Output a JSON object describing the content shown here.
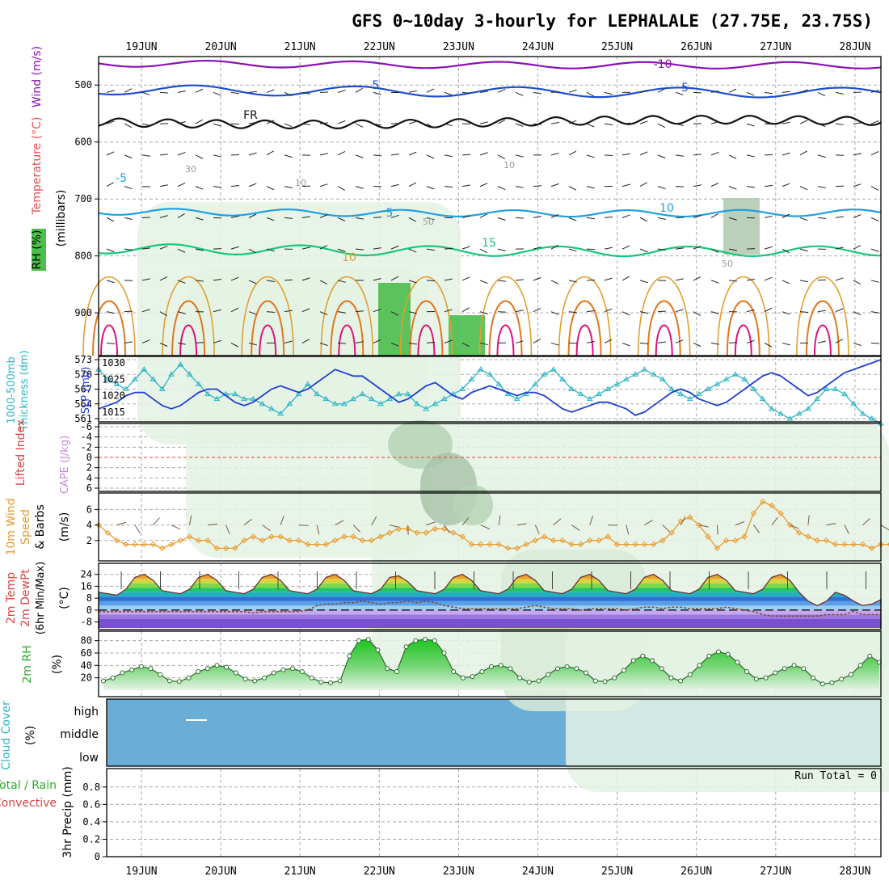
{
  "title": "GFS 0~10day 3-hourly for LEPHALALE (27.75E, 23.75S)",
  "dates": [
    "19JUN",
    "20JUN",
    "21JUN",
    "22JUN",
    "23JUN",
    "24JUN",
    "25JUN",
    "26JUN",
    "27JUN",
    "28JUN"
  ],
  "colors": {
    "purple": "#8b12b5",
    "blue": "#1c4fd0",
    "skyblue": "#1e9fe6",
    "green": "#16c77b",
    "orange": "#e0a030",
    "darkorange": "#e07820",
    "magenta": "#e0107a",
    "rh": "#4ab84a",
    "cyan": "#2bb5c5",
    "slp": "#1f3fd0",
    "wind": "#e89a2a",
    "cloud": "#6aaed6",
    "red": "#e04040"
  },
  "chart_data": [
    {
      "type": "contour",
      "panel": "upper-air",
      "ylabel_parts": [
        "RH (%)",
        "Temperature (°C)",
        "Wind (m/s)"
      ],
      "yunits": "(millibars)",
      "yticks": [
        500,
        600,
        700,
        800,
        900
      ],
      "ylim": [
        1000,
        450
      ],
      "contour_labels": [
        "-10",
        "-5",
        "5",
        "FR",
        "-5",
        "5",
        "10",
        "15",
        "10",
        "30",
        "50",
        "50",
        "10",
        "10"
      ]
    },
    {
      "type": "line",
      "panel": "thickness-slp",
      "ylabel_left": "1000-500mb Thickness (dm)",
      "ylabel_right": "SLP (mb)",
      "yticks_left": [
        "573",
        "570",
        "567",
        "564",
        "561"
      ],
      "yticks_right": [
        "1030",
        "1025",
        "1020",
        "1015"
      ],
      "series": [
        {
          "name": "Thickness",
          "values": [
            571,
            569,
            568,
            567,
            569,
            571,
            569,
            567,
            570,
            572,
            570,
            568,
            566,
            565,
            566,
            566,
            565,
            565,
            564,
            563,
            562,
            564,
            566,
            568,
            566,
            565,
            564,
            564,
            565,
            566,
            565,
            564,
            565,
            566,
            566,
            564,
            563,
            564,
            565,
            566,
            567,
            569,
            571,
            570,
            568,
            566,
            565,
            566,
            568,
            570,
            571,
            569,
            567,
            566,
            565,
            566,
            567,
            568,
            569,
            570,
            571,
            570,
            569,
            567,
            566,
            565,
            566,
            567,
            568,
            569,
            570,
            569,
            567,
            565,
            563,
            562,
            561,
            562,
            563,
            565,
            567,
            567,
            566,
            564,
            562,
            561,
            560
          ]
        },
        {
          "name": "SLP",
          "values": [
            1016,
            1017,
            1018,
            1020,
            1021,
            1021,
            1019,
            1017,
            1016,
            1017,
            1019,
            1021,
            1022,
            1022,
            1020,
            1018,
            1017,
            1018,
            1020,
            1022,
            1023,
            1022,
            1021,
            1022,
            1024,
            1026,
            1028,
            1027,
            1026,
            1026,
            1024,
            1022,
            1020,
            1018,
            1019,
            1021,
            1023,
            1024,
            1022,
            1020,
            1019,
            1021,
            1022,
            1023,
            1022,
            1021,
            1020,
            1021,
            1021,
            1020,
            1018,
            1016,
            1015,
            1016,
            1017,
            1018,
            1018,
            1017,
            1016,
            1014,
            1015,
            1017,
            1019,
            1021,
            1022,
            1021,
            1019,
            1018,
            1017,
            1018,
            1020,
            1022,
            1024,
            1026,
            1027,
            1026,
            1024,
            1022,
            1020,
            1021,
            1023,
            1025,
            1027,
            1028,
            1029,
            1030,
            1031
          ]
        }
      ]
    },
    {
      "type": "line",
      "panel": "cape-li",
      "ylabel_parts": [
        "Lifted Index",
        "CAPE (J/kg)"
      ],
      "yticks": [
        "-6",
        "-4",
        "-2",
        "0",
        "2",
        "4",
        "6"
      ]
    },
    {
      "type": "line",
      "panel": "wind10m",
      "ylabel_parts": [
        "10m Wind",
        "Speed",
        "& Barbs",
        "(m/s)"
      ],
      "yticks": [
        2,
        4,
        6
      ],
      "series": [
        {
          "name": "Speed",
          "values": [
            4,
            3,
            2,
            1.5,
            1.5,
            1.5,
            1.5,
            1,
            1.5,
            2,
            2.5,
            2,
            2,
            1,
            1,
            1,
            2,
            2.5,
            2,
            2.5,
            2.5,
            2,
            2,
            1.5,
            1.5,
            1.5,
            2,
            2.5,
            2.5,
            2,
            2,
            2.5,
            3,
            3.5,
            3.5,
            3,
            3,
            3.5,
            3.5,
            3,
            2.5,
            1.5,
            1.5,
            1.5,
            1.5,
            1,
            1,
            1.5,
            2,
            2.5,
            2,
            2,
            1.5,
            1.5,
            2,
            2,
            2.5,
            1.5,
            1.5,
            1.5,
            1.5,
            1.5,
            2,
            3,
            4.5,
            5,
            4,
            2.5,
            1,
            2,
            2,
            2.5,
            5.5,
            7,
            6.5,
            5.5,
            4,
            3,
            2.5,
            2,
            2,
            1.5,
            1.5,
            1.5,
            1.5,
            1,
            1.5,
            1.5,
            1
          ]
        }
      ]
    },
    {
      "type": "area",
      "panel": "temp2m",
      "ylabel_parts": [
        "2m Temp",
        "2m DewPt",
        "(6hr Min/Max)",
        "(°C)"
      ],
      "yticks": [
        "24",
        "16",
        "8",
        "0",
        "-8"
      ],
      "series": [
        {
          "name": "Temp",
          "values": [
            12,
            11,
            10,
            14,
            22,
            24,
            20,
            13,
            12,
            11,
            14,
            22,
            24,
            20,
            13,
            12,
            11,
            14,
            22,
            24,
            20,
            13,
            12,
            11,
            14,
            22,
            24,
            20,
            13,
            12,
            11,
            14,
            22,
            23,
            19,
            13,
            12,
            11,
            14,
            22,
            24,
            20,
            13,
            12,
            11,
            14,
            22,
            24,
            20,
            13,
            12,
            11,
            14,
            22,
            24,
            20,
            13,
            12,
            11,
            14,
            22,
            24,
            20,
            13,
            12,
            11,
            14,
            22,
            24,
            20,
            13,
            12,
            11,
            14,
            22,
            24,
            20,
            12,
            6,
            3,
            6,
            12,
            10,
            6,
            3,
            4,
            7
          ]
        },
        {
          "name": "DewPt",
          "values": [
            -1,
            -1,
            -1,
            -1,
            -1,
            -1,
            -1,
            -1,
            -1,
            -1,
            -1,
            -1,
            -1,
            -1,
            -1,
            -1,
            -1,
            -2,
            -1,
            -1,
            -1,
            -1,
            -1,
            0,
            3,
            4,
            4,
            5,
            5,
            6,
            5,
            4,
            5,
            5,
            6,
            5,
            6,
            5,
            3,
            2,
            1,
            1,
            1,
            1,
            1,
            1,
            1,
            2,
            3,
            2,
            1,
            1,
            1,
            0,
            1,
            1,
            1,
            1,
            0,
            1,
            2,
            2,
            1,
            2,
            2,
            1,
            1,
            1,
            1,
            2,
            1,
            0,
            -1,
            -3,
            -4,
            -4,
            -4,
            -4,
            -4,
            -4,
            -3,
            -3,
            -3,
            -1,
            -3,
            -3,
            -3
          ]
        }
      ]
    },
    {
      "type": "area",
      "panel": "rh2m",
      "ylabel_parts": [
        "2m RH",
        "(%)"
      ],
      "yticks": [
        20,
        40,
        60,
        80
      ],
      "series": [
        {
          "name": "RH",
          "values": [
            15,
            20,
            28,
            33,
            38,
            35,
            25,
            15,
            14,
            20,
            30,
            35,
            40,
            37,
            28,
            18,
            15,
            20,
            28,
            33,
            35,
            30,
            20,
            13,
            12,
            15,
            55,
            80,
            82,
            65,
            35,
            30,
            70,
            80,
            82,
            80,
            60,
            30,
            20,
            22,
            30,
            38,
            40,
            35,
            20,
            13,
            15,
            25,
            35,
            38,
            35,
            28,
            15,
            14,
            20,
            32,
            48,
            55,
            48,
            35,
            20,
            15,
            25,
            40,
            55,
            62,
            58,
            45,
            30,
            18,
            20,
            28,
            35,
            40,
            35,
            20,
            10,
            12,
            18,
            25,
            40,
            55,
            45
          ]
        }
      ]
    },
    {
      "type": "heatmap",
      "panel": "cloud",
      "ylabel_parts": [
        "Cloud Cover",
        "(%)"
      ],
      "levels": [
        "high",
        "middle",
        "low"
      ]
    },
    {
      "type": "bar",
      "panel": "precip",
      "ylabel_parts": [
        "Total / Rain",
        "Convective",
        "3hr Precip (mm)"
      ],
      "yticks": [
        "0",
        "0.2",
        "0.4",
        "0.6",
        "0.8"
      ],
      "run_total": "Run Total = 0",
      "values": []
    }
  ]
}
